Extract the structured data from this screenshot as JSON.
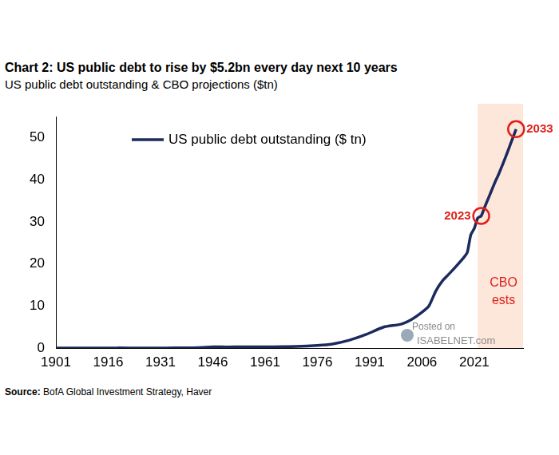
{
  "chart_data": {
    "type": "line",
    "title": "Chart 2: US public debt to rise by $5.2bn every day next 10 years",
    "subtitle": "US public debt outstanding & CBO projections ($tn)",
    "source": "Source: BofA Global Investment Strategy, Haver",
    "x": [
      1901,
      1910,
      1916,
      1917,
      1918,
      1919,
      1925,
      1930,
      1935,
      1940,
      1943,
      1946,
      1950,
      1955,
      1961,
      1966,
      1970,
      1976,
      1980,
      1985,
      1990,
      1995,
      2000,
      2003,
      2006,
      2008,
      2010,
      2012,
      2014,
      2016,
      2018,
      2019,
      2020,
      2021,
      2022,
      2023,
      2024,
      2025,
      2026,
      2027,
      2028,
      2029,
      2030,
      2031,
      2032,
      2033
    ],
    "series": [
      {
        "name": "US public debt outstanding ($ tn)",
        "color": "#1c2a5e",
        "values": [
          0.002,
          0.003,
          0.004,
          0.012,
          0.02,
          0.025,
          0.021,
          0.016,
          0.029,
          0.043,
          0.137,
          0.269,
          0.257,
          0.274,
          0.289,
          0.32,
          0.371,
          0.62,
          0.91,
          1.82,
          3.23,
          4.97,
          5.67,
          6.78,
          8.5,
          10.0,
          13.6,
          16.1,
          17.8,
          19.6,
          21.5,
          22.7,
          26.9,
          28.4,
          30.9,
          31.4,
          33.5,
          35.5,
          37.5,
          39.5,
          41.3,
          43.3,
          45.4,
          47.6,
          49.8,
          52
        ]
      }
    ],
    "xlim": [
      1901,
      2035
    ],
    "ylim": [
      0,
      55
    ],
    "xticks": [
      1901,
      1916,
      1931,
      1946,
      1961,
      1976,
      1991,
      2006,
      2021
    ],
    "yticks": [
      0,
      10,
      20,
      30,
      40,
      50
    ],
    "grid": false,
    "legend": "upper left",
    "shaded_region": {
      "from": 2022,
      "to": 2035,
      "label": [
        "CBO",
        "ests"
      ]
    },
    "annotations": [
      {
        "x": 2023,
        "y": 31.4,
        "label": "2023"
      },
      {
        "x": 2033,
        "y": 52,
        "label": "2033"
      }
    ],
    "watermark": [
      "Posted on",
      "ISABELNET.com"
    ]
  }
}
